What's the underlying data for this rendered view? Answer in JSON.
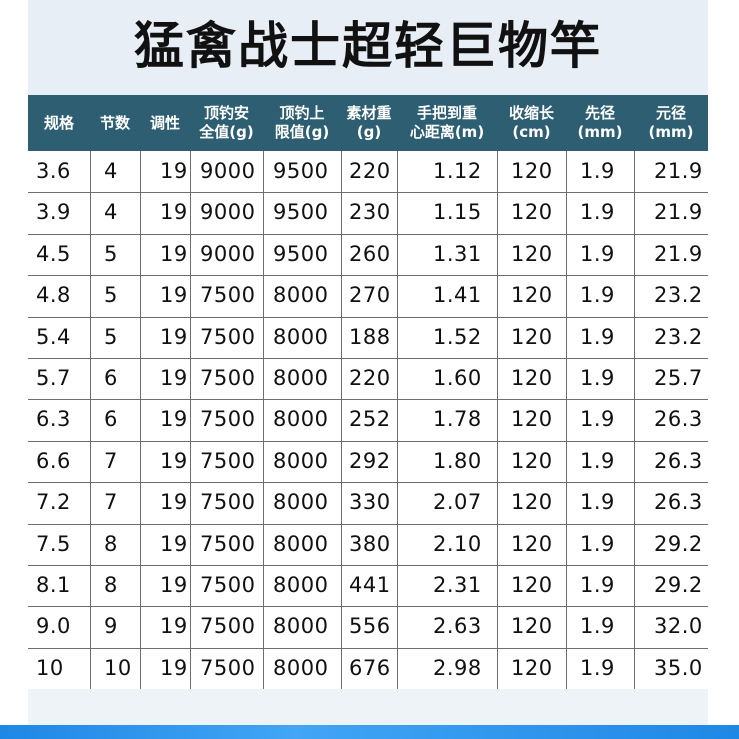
{
  "title": "猛禽战士超轻巨物竿",
  "table": {
    "headers": [
      "规格",
      "节数",
      "调性",
      "顶钓安\n全值(g)",
      "顶钓上\n限值(g)",
      "素材重\n(g)",
      "手把到重\n心距离(m)",
      "收缩长\n(cm)",
      "先径\n(mm)",
      "元径\n(mm)"
    ],
    "rows": [
      [
        "3.6",
        "4",
        "19",
        "9000",
        "9500",
        "220",
        "1.12",
        "120",
        "1.9",
        "21.9"
      ],
      [
        "3.9",
        "4",
        "19",
        "9000",
        "9500",
        "230",
        "1.15",
        "120",
        "1.9",
        "21.9"
      ],
      [
        "4.5",
        "5",
        "19",
        "9000",
        "9500",
        "260",
        "1.31",
        "120",
        "1.9",
        "21.9"
      ],
      [
        "4.8",
        "5",
        "19",
        "7500",
        "8000",
        "270",
        "1.41",
        "120",
        "1.9",
        "23.2"
      ],
      [
        "5.4",
        "5",
        "19",
        "7500",
        "8000",
        "188",
        "1.52",
        "120",
        "1.9",
        "23.2"
      ],
      [
        "5.7",
        "6",
        "19",
        "7500",
        "8000",
        "220",
        "1.60",
        "120",
        "1.9",
        "25.7"
      ],
      [
        "6.3",
        "6",
        "19",
        "7500",
        "8000",
        "252",
        "1.78",
        "120",
        "1.9",
        "26.3"
      ],
      [
        "6.6",
        "7",
        "19",
        "7500",
        "8000",
        "292",
        "1.80",
        "120",
        "1.9",
        "26.3"
      ],
      [
        "7.2",
        "7",
        "19",
        "7500",
        "8000",
        "330",
        "2.07",
        "120",
        "1.9",
        "26.3"
      ],
      [
        "7.5",
        "8",
        "19",
        "7500",
        "8000",
        "380",
        "2.10",
        "120",
        "1.9",
        "29.2"
      ],
      [
        "8.1",
        "8",
        "19",
        "7500",
        "8000",
        "441",
        "2.31",
        "120",
        "1.9",
        "29.2"
      ],
      [
        "9.0",
        "9",
        "19",
        "7500",
        "8000",
        "556",
        "2.63",
        "120",
        "1.9",
        "32.0"
      ],
      [
        "10",
        "10",
        "19",
        "7500",
        "8000",
        "676",
        "2.98",
        "120",
        "1.9",
        "35.0"
      ]
    ]
  },
  "colors": {
    "header_bg": "#2d5e71",
    "panel_bg": "#e7eef6",
    "accent_bar": "#1e88e5"
  }
}
